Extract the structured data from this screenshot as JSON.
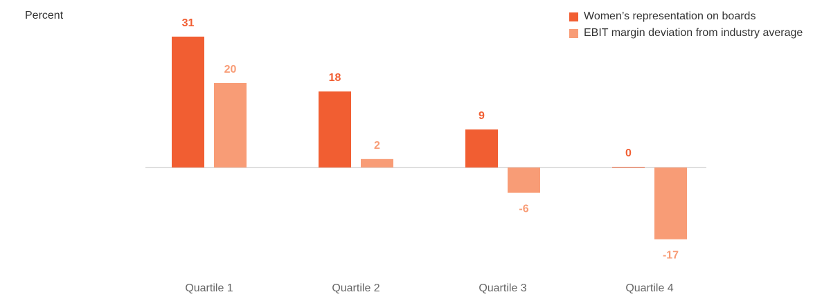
{
  "chart_data": {
    "type": "bar",
    "unit_label": "Percent",
    "categories": [
      "Quartile 1",
      "Quartile 2",
      "Quartile 3",
      "Quartile 4"
    ],
    "series": [
      {
        "name": "Women’s representation on boards",
        "color": "#f15e32",
        "values": [
          31,
          18,
          9,
          0
        ]
      },
      {
        "name": "EBIT margin deviation from industry average",
        "color": "#f89c76",
        "values": [
          20,
          2,
          -6,
          -17
        ]
      }
    ],
    "ylim": [
      -20,
      31
    ],
    "grid": false,
    "legend": "top-right"
  }
}
